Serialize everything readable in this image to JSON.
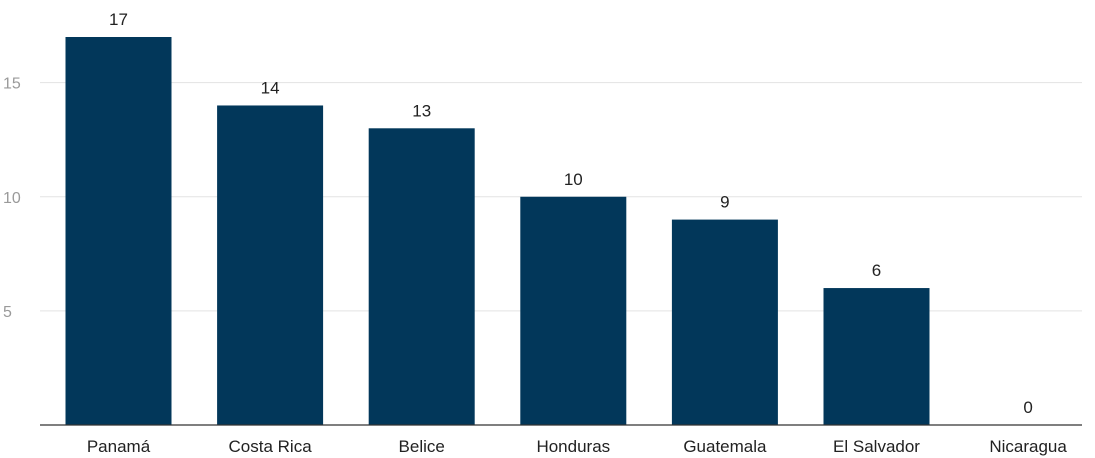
{
  "chart_data": {
    "type": "bar",
    "title": "",
    "xlabel": "",
    "ylabel": "",
    "categories": [
      "Panamá",
      "Costa Rica",
      "Belice",
      "Honduras",
      "Guatemala",
      "El Salvador",
      "Nicaragua"
    ],
    "values": [
      17,
      14,
      13,
      10,
      9,
      6,
      0
    ],
    "ylim": [
      0,
      17
    ],
    "yticks": [
      5,
      10,
      15
    ],
    "grid": true,
    "legend": "none",
    "colors": {
      "bar": "#02375a"
    }
  }
}
